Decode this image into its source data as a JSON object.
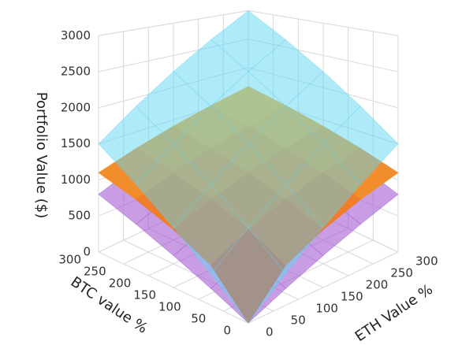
{
  "chart_data": {
    "type": "surface",
    "x_label": "BTC value %",
    "y_label": "ETH Value %",
    "z_label": "Portfolio Value ($)",
    "x": [
      0,
      75,
      150,
      225,
      300
    ],
    "y": [
      0,
      75,
      150,
      225,
      300
    ],
    "xlim": [
      0,
      300
    ],
    "ylim": [
      0,
      300
    ],
    "zlim": [
      0,
      3000
    ],
    "xticks": [
      0,
      50,
      100,
      150,
      200,
      250,
      300
    ],
    "yticks": [
      0,
      50,
      100,
      150,
      200,
      250,
      300
    ],
    "zticks": [
      0,
      500,
      1000,
      1500,
      2000,
      2500,
      3000
    ],
    "grid": true,
    "surfaces": [
      {
        "color": "#a35bd0",
        "opacity": 0.6,
        "z": [
          [
            0,
            200,
            400,
            600,
            800
          ],
          [
            200,
            400,
            600,
            800,
            1000
          ],
          [
            400,
            600,
            800,
            1000,
            1200
          ],
          [
            600,
            800,
            1000,
            1200,
            1400
          ],
          [
            800,
            1000,
            1200,
            1400,
            1600
          ]
        ]
      },
      {
        "colorscale": [
          "#e0281a",
          "#f9b233"
        ],
        "opacity": 1,
        "z": [
          [
            0,
            478,
            726,
            925,
            1100
          ],
          [
            478,
            726,
            925,
            1100,
            1257
          ],
          [
            726,
            925,
            1100,
            1257,
            1403
          ],
          [
            925,
            1100,
            1257,
            1403,
            1539
          ],
          [
            1100,
            1257,
            1403,
            1539,
            1668
          ]
        ]
      },
      {
        "color": "#5fd6f2",
        "opacity": 0.5,
        "z": [
          [
            0,
            375,
            750,
            1125,
            1500
          ],
          [
            375,
            750,
            1125,
            1500,
            1875
          ],
          [
            750,
            1125,
            1500,
            1875,
            2250
          ],
          [
            1125,
            1500,
            1875,
            2250,
            2625
          ],
          [
            1500,
            1875,
            2250,
            2625,
            3000
          ]
        ]
      }
    ]
  }
}
